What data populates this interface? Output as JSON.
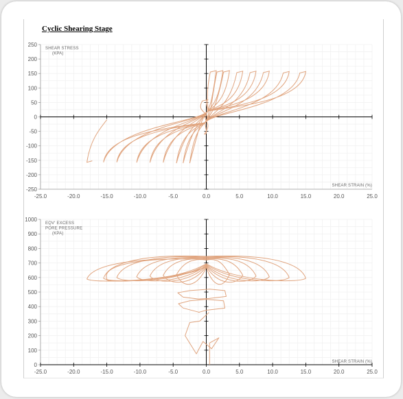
{
  "title": "Cyclic Shearing Stage",
  "chart_data": [
    {
      "type": "line",
      "title": "",
      "xlabel": "SHEAR STRAIN (%)",
      "ylabel_lines": [
        "SHEAR STRESS",
        "(KPA)"
      ],
      "xlim": [
        -25,
        25
      ],
      "ylim": [
        -250,
        250
      ],
      "xticks": [
        -25,
        -20,
        -15,
        -10,
        -5,
        0,
        5,
        10,
        15,
        20,
        25
      ],
      "yticks": [
        250,
        200,
        150,
        100,
        50,
        0,
        -50,
        -100,
        -150,
        -200,
        -250
      ],
      "x_tick_labels": [
        "-25.0",
        "-20.0",
        "-15.0",
        "-10.0",
        "-5.0",
        "0.0",
        "5.0",
        "10.0",
        "15.0",
        "20.0",
        "25.0"
      ],
      "grid": true,
      "line_color": "#e0a47e",
      "cycles": [
        {
          "x_min": -0.3,
          "x_max": 0.3,
          "y_top": 60,
          "y_bottom": -60
        },
        {
          "x_min": -2.5,
          "x_max": 1.5,
          "y_top": 160,
          "y_bottom": -160
        },
        {
          "x_min": -3.5,
          "x_max": 2.5,
          "y_top": 160,
          "y_bottom": -160
        },
        {
          "x_min": -4.5,
          "x_max": 3.5,
          "y_top": 160,
          "y_bottom": -160
        },
        {
          "x_min": -6.5,
          "x_max": 5.5,
          "y_top": 158,
          "y_bottom": -158
        },
        {
          "x_min": -8.5,
          "x_max": 7.5,
          "y_top": 158,
          "y_bottom": -158
        },
        {
          "x_min": -10.5,
          "x_max": 9.5,
          "y_top": 158,
          "y_bottom": -158
        },
        {
          "x_min": -13.5,
          "x_max": 12.5,
          "y_top": 157,
          "y_bottom": -157
        },
        {
          "x_min": -15.5,
          "x_max": 15,
          "y_top": 157,
          "y_bottom": -157
        },
        {
          "x_min": -18,
          "x_max": -15,
          "y_top": -10,
          "y_bottom": -157
        }
      ]
    },
    {
      "type": "line",
      "title": "",
      "xlabel": "SHEAR STRAIN (%)",
      "ylabel_lines": [
        "EQV' EXCESS",
        "PORE PRESSURE",
        "(KPA)"
      ],
      "xlim": [
        -25,
        25
      ],
      "ylim": [
        0,
        1000
      ],
      "xticks": [
        -25,
        -20,
        -15,
        -10,
        -5,
        0,
        5,
        10,
        15,
        20,
        25
      ],
      "yticks": [
        1000,
        900,
        800,
        700,
        600,
        500,
        400,
        300,
        200,
        100,
        0
      ],
      "x_tick_labels": [
        "-25.0",
        "-20.0",
        "-15.0",
        "-10.0",
        "-5.0",
        "0.0",
        "5.0",
        "10.0",
        "15.0",
        "20.0",
        "25.0"
      ],
      "grid": true,
      "line_color": "#e0a47e",
      "early_cycles": [
        {
          "x": [
            0.5,
            0.5,
            1.9,
            0.8,
            -0.5,
            -1.5,
            -3.2,
            -2.5,
            -1.0,
            0.4
          ],
          "y": [
            0,
            150,
            185,
            110,
            160,
            75,
            200,
            290,
            300,
            360
          ]
        },
        {
          "x": [
            -1.0,
            -3.5,
            -4.2,
            -2.5,
            0.0,
            2.6,
            2.8,
            0.0,
            -1.2
          ],
          "y": [
            360,
            390,
            420,
            440,
            450,
            440,
            390,
            375,
            360
          ]
        },
        {
          "x": [
            -1.2,
            -3.5,
            -4.3,
            -2.5,
            0.5,
            2.8,
            3.0,
            0.3,
            -1.2
          ],
          "y": [
            452,
            465,
            495,
            510,
            520,
            510,
            470,
            455,
            452
          ]
        }
      ],
      "cycles": [
        {
          "x_min": -4.5,
          "x_max": 3.5,
          "y_top": 700,
          "y_mid": 620,
          "y_bottom": 530
        },
        {
          "x_min": -6.5,
          "x_max": 5.5,
          "y_top": 705,
          "y_mid": 615,
          "y_bottom": 550
        },
        {
          "x_min": -8.5,
          "x_max": 7.5,
          "y_top": 710,
          "y_mid": 610,
          "y_bottom": 560
        },
        {
          "x_min": -10.5,
          "x_max": 9.5,
          "y_top": 715,
          "y_mid": 605,
          "y_bottom": 565
        },
        {
          "x_min": -13.5,
          "x_max": 12.5,
          "y_top": 720,
          "y_mid": 600,
          "y_bottom": 568
        },
        {
          "x_min": -15.5,
          "x_max": 15,
          "y_top": 725,
          "y_mid": 595,
          "y_bottom": 570
        },
        {
          "x_min": -18,
          "x_max": -15,
          "y_top": 705,
          "y_mid": 590,
          "y_bottom": 570
        }
      ]
    }
  ]
}
